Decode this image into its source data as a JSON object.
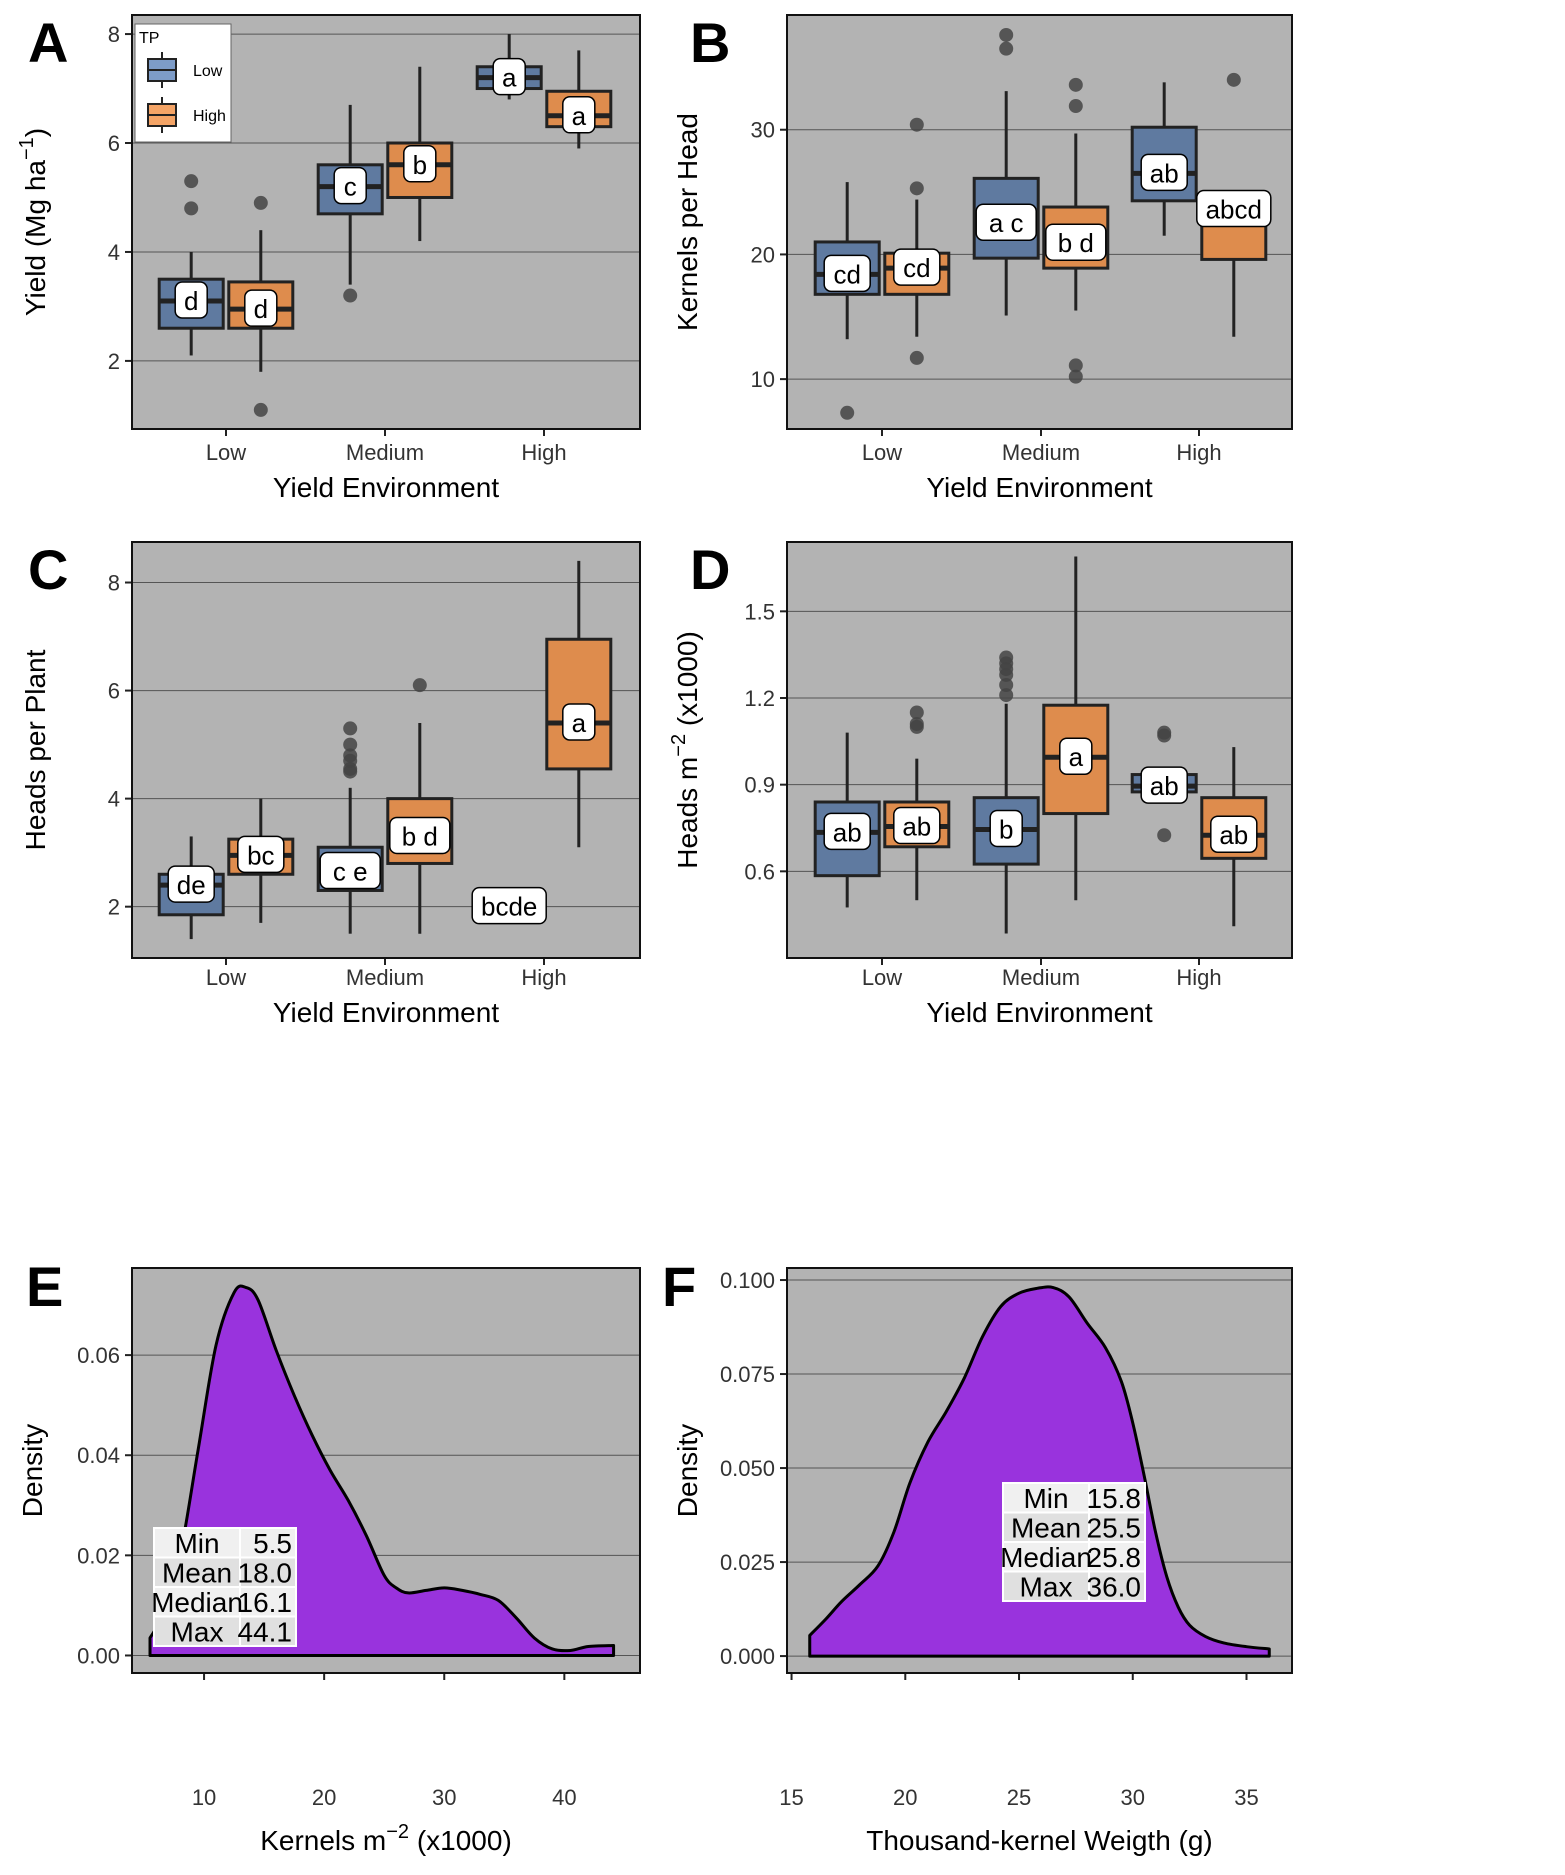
{
  "figure": {
    "colors": {
      "panel_bg": "#b3b3b3",
      "grid": "#555555",
      "low_tp": "#5f7aa0",
      "high_tp": "#de8c4d",
      "legend_low": "#7d9cc8",
      "legend_high": "#f4a466",
      "density_fill": "#9933dd",
      "outlier": "#444444"
    }
  },
  "chart_data": [
    {
      "panel": "A",
      "type": "box",
      "title": "",
      "xlabel": "Yield Environment",
      "ylabel": "Yield (Mg ha",
      "ylabel_sup": "−1",
      "ylabel_tail": ")",
      "categories": [
        "Low",
        "Medium",
        "High"
      ],
      "ylim": [
        0.75,
        8.35
      ],
      "yticks": [
        2,
        4,
        6,
        8
      ],
      "grid": true,
      "legend": {
        "title": "TP",
        "entries": [
          "Low",
          "High"
        ],
        "placement": "top-left"
      },
      "series": [
        {
          "name": "Low",
          "boxes": [
            {
              "category": "Low",
              "min": 2.1,
              "q1": 2.6,
              "median": 3.1,
              "q3": 3.5,
              "max": 4.0,
              "outliers": [
                4.8,
                5.3
              ],
              "letter": "d"
            },
            {
              "category": "Medium",
              "min": 3.4,
              "q1": 4.7,
              "median": 5.2,
              "q3": 5.6,
              "max": 6.7,
              "outliers": [
                3.2
              ],
              "letter": "c"
            },
            {
              "category": "High",
              "min": 6.8,
              "q1": 7.0,
              "median": 7.2,
              "q3": 7.4,
              "max": 8.0,
              "outliers": [],
              "letter": "a"
            }
          ]
        },
        {
          "name": "High",
          "boxes": [
            {
              "category": "Low",
              "min": 1.8,
              "q1": 2.6,
              "median": 2.95,
              "q3": 3.45,
              "max": 4.4,
              "outliers": [
                4.9,
                1.1
              ],
              "letter": "d"
            },
            {
              "category": "Medium",
              "min": 4.2,
              "q1": 5.0,
              "median": 5.6,
              "q3": 6.0,
              "max": 7.4,
              "outliers": [],
              "letter": "b"
            },
            {
              "category": "High",
              "min": 5.9,
              "q1": 6.3,
              "median": 6.5,
              "q3": 6.95,
              "max": 7.7,
              "outliers": [],
              "letter": "a"
            }
          ]
        }
      ]
    },
    {
      "panel": "B",
      "type": "box",
      "title": "",
      "xlabel": "Yield Environment",
      "ylabel": "Kernels per Head",
      "categories": [
        "Low",
        "Medium",
        "High"
      ],
      "ylim": [
        6,
        39.2
      ],
      "yticks": [
        10,
        20,
        30
      ],
      "grid": true,
      "series": [
        {
          "name": "Low",
          "boxes": [
            {
              "category": "Low",
              "min": 13.2,
              "q1": 16.8,
              "median": 18.4,
              "q3": 21.0,
              "max": 25.8,
              "outliers": [
                7.3
              ],
              "letter": "cd"
            },
            {
              "category": "Medium",
              "min": 15.1,
              "q1": 19.7,
              "median": 22.5,
              "q3": 26.1,
              "max": 33.1,
              "outliers": [
                36.5,
                37.6
              ],
              "letter": "a c"
            },
            {
              "category": "High",
              "min": 21.5,
              "q1": 24.3,
              "median": 26.5,
              "q3": 30.2,
              "max": 33.8,
              "outliers": [],
              "letter": "ab"
            }
          ]
        },
        {
          "name": "High",
          "boxes": [
            {
              "category": "Low",
              "min": 13.4,
              "q1": 16.8,
              "median": 18.9,
              "q3": 20.1,
              "max": 24.4,
              "outliers": [
                30.4,
                25.3,
                11.7
              ],
              "letter": "cd"
            },
            {
              "category": "Medium",
              "min": 15.5,
              "q1": 18.9,
              "median": 20.9,
              "q3": 23.8,
              "max": 29.7,
              "outliers": [
                33.6,
                31.9,
                11.1,
                10.2
              ],
              "letter": "b d"
            },
            {
              "category": "High",
              "min": 13.4,
              "q1": 19.6,
              "median": 23.6,
              "q3": 24.1,
              "max": 25.1,
              "outliers": [
                34.0
              ],
              "letter": "abcd"
            }
          ]
        }
      ]
    },
    {
      "panel": "C",
      "type": "box",
      "title": "",
      "xlabel": "Yield Environment",
      "ylabel": "Heads per Plant",
      "categories": [
        "Low",
        "Medium",
        "High"
      ],
      "ylim": [
        1.05,
        8.75
      ],
      "yticks": [
        2,
        4,
        6,
        8
      ],
      "grid": true,
      "series": [
        {
          "name": "Low",
          "boxes": [
            {
              "category": "Low",
              "min": 1.4,
              "q1": 1.85,
              "median": 2.4,
              "q3": 2.6,
              "max": 3.3,
              "outliers": [],
              "letter": "de"
            },
            {
              "category": "Medium",
              "min": 1.5,
              "q1": 2.3,
              "median": 2.65,
              "q3": 3.1,
              "max": 4.2,
              "outliers": [
                4.5,
                4.55,
                4.7,
                4.8,
                5.0,
                5.3
              ],
              "letter": "c e"
            },
            {
              "category": "High",
              "min": 2.0,
              "q1": 1.95,
              "median": 2.0,
              "q3": 2.0,
              "max": 2.2,
              "outliers": [],
              "letter": "bcde"
            }
          ]
        },
        {
          "name": "High",
          "boxes": [
            {
              "category": "Low",
              "min": 1.7,
              "q1": 2.6,
              "median": 2.95,
              "q3": 3.25,
              "max": 4.0,
              "outliers": [],
              "letter": "bc"
            },
            {
              "category": "Medium",
              "min": 1.5,
              "q1": 2.8,
              "median": 3.3,
              "q3": 4.0,
              "max": 5.4,
              "outliers": [
                6.1
              ],
              "letter": "b d"
            },
            {
              "category": "High",
              "min": 3.1,
              "q1": 4.55,
              "median": 5.4,
              "q3": 6.95,
              "max": 8.4,
              "outliers": [],
              "letter": "a"
            }
          ]
        }
      ]
    },
    {
      "panel": "D",
      "type": "box",
      "title": "",
      "xlabel": "Yield Environment",
      "ylabel": "Heads m",
      "ylabel_sup": "−2",
      "ylabel_tail": " (x1000)",
      "categories": [
        "Low",
        "Medium",
        "High"
      ],
      "ylim": [
        0.3,
        1.74
      ],
      "yticks": [
        0.6,
        0.9,
        1.2,
        1.5
      ],
      "ytick_labels": [
        "0.6",
        "0.9",
        "1.2",
        "1.5"
      ],
      "grid": true,
      "series": [
        {
          "name": "Low",
          "boxes": [
            {
              "category": "Low",
              "min": 0.475,
              "q1": 0.585,
              "median": 0.735,
              "q3": 0.84,
              "max": 1.08,
              "outliers": [],
              "letter": "ab"
            },
            {
              "category": "Medium",
              "min": 0.385,
              "q1": 0.625,
              "median": 0.745,
              "q3": 0.855,
              "max": 1.18,
              "outliers": [
                1.21,
                1.245,
                1.28,
                1.3,
                1.32,
                1.34
              ],
              "letter": "b"
            },
            {
              "category": "High",
              "min": 0.87,
              "q1": 0.875,
              "median": 0.895,
              "q3": 0.935,
              "max": 0.935,
              "outliers": [
                1.07,
                1.08,
                0.725
              ],
              "letter": "ab"
            }
          ]
        },
        {
          "name": "High",
          "boxes": [
            {
              "category": "Low",
              "min": 0.5,
              "q1": 0.685,
              "median": 0.755,
              "q3": 0.84,
              "max": 0.99,
              "outliers": [
                1.1,
                1.11,
                1.15
              ],
              "letter": "ab"
            },
            {
              "category": "Medium",
              "min": 0.5,
              "q1": 0.8,
              "median": 0.995,
              "q3": 1.175,
              "max": 1.69,
              "outliers": [],
              "letter": "a"
            },
            {
              "category": "High",
              "min": 0.41,
              "q1": 0.645,
              "median": 0.725,
              "q3": 0.855,
              "max": 1.03,
              "outliers": [],
              "letter": "ab"
            }
          ]
        }
      ]
    },
    {
      "panel": "E",
      "type": "area",
      "title": "",
      "xlabel": "Kernels m",
      "xlabel_sup": "−2",
      "xlabel_tail": " (x1000)",
      "ylabel": "Density",
      "xlim": [
        4.0,
        46.3
      ],
      "ylim": [
        -0.0035,
        0.0774
      ],
      "xticks": [
        10,
        20,
        30,
        40
      ],
      "yticks": [
        0.0,
        0.02,
        0.04,
        0.06
      ],
      "ytick_labels": [
        "0.00",
        "0.02",
        "0.04",
        "0.06"
      ],
      "grid": true,
      "x": [
        5.5,
        6.5,
        8,
        9.5,
        11,
        12.5,
        13.5,
        14.5,
        16,
        17.5,
        19,
        20.5,
        22,
        23.5,
        25,
        26,
        27,
        28.5,
        30,
        31.5,
        33,
        34.5,
        36,
        37.5,
        39,
        40.5,
        42,
        44.1
      ],
      "y": [
        0.0035,
        0.008,
        0.02,
        0.041,
        0.062,
        0.0725,
        0.0735,
        0.071,
        0.061,
        0.052,
        0.044,
        0.037,
        0.031,
        0.024,
        0.016,
        0.0135,
        0.0125,
        0.013,
        0.0135,
        0.013,
        0.0122,
        0.011,
        0.0075,
        0.0035,
        0.0013,
        0.001,
        0.0018,
        0.002
      ],
      "stats_table": [
        {
          "label": "Min",
          "value": "5.5"
        },
        {
          "label": "Mean",
          "value": "18.0"
        },
        {
          "label": "Median",
          "value": "16.1"
        },
        {
          "label": "Max",
          "value": "44.1"
        }
      ]
    },
    {
      "panel": "F",
      "type": "area",
      "title": "",
      "xlabel": "Thousand-kernel Weigth (g)",
      "ylabel": "Density",
      "xlim": [
        14.8,
        37.0
      ],
      "ylim": [
        -0.0045,
        0.1032
      ],
      "xticks": [
        15,
        20,
        25,
        30,
        35
      ],
      "yticks": [
        0.0,
        0.025,
        0.05,
        0.075,
        0.1
      ],
      "ytick_labels": [
        "0.000",
        "0.025",
        "0.050",
        "0.075",
        "0.100"
      ],
      "grid": true,
      "x": [
        15.8,
        16.5,
        17.2,
        18,
        18.8,
        19.5,
        20.2,
        21,
        21.8,
        22.6,
        23.4,
        24.2,
        25,
        25.8,
        26.5,
        27.2,
        28,
        28.8,
        29.5,
        30.0,
        30.5,
        31,
        31.5,
        32,
        32.5,
        33.2,
        34,
        35,
        36.0
      ],
      "y": [
        0.0055,
        0.0098,
        0.0145,
        0.019,
        0.024,
        0.033,
        0.046,
        0.057,
        0.065,
        0.074,
        0.085,
        0.093,
        0.0965,
        0.0978,
        0.098,
        0.0955,
        0.0885,
        0.082,
        0.073,
        0.062,
        0.048,
        0.033,
        0.021,
        0.013,
        0.0082,
        0.0052,
        0.0035,
        0.0025,
        0.0019
      ],
      "stats_table": [
        {
          "label": "Min",
          "value": "15.8"
        },
        {
          "label": "Mean",
          "value": "25.5"
        },
        {
          "label": "Median",
          "value": "25.8"
        },
        {
          "label": "Max",
          "value": "36.0"
        }
      ]
    }
  ]
}
